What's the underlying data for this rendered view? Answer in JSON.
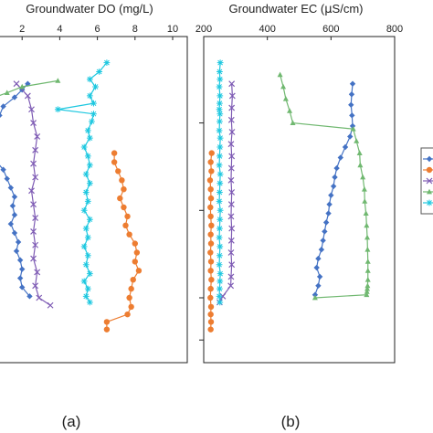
{
  "panels": {
    "a": {
      "title": "Groundwater DO (mg/L)",
      "label": "(a)"
    },
    "b": {
      "title_prefix": "Groundwater EC (",
      "title_mu": "μ",
      "title_suffix": "S/cm)",
      "label": "(b)"
    }
  },
  "chart_data": [
    {
      "type": "line",
      "panel": "a",
      "title": "Groundwater DO (mg/L)",
      "xlabel": "",
      "ylabel": "",
      "xlim": [
        0,
        10
      ],
      "ylim": [
        0,
        1
      ],
      "x_ticks": [
        2,
        4,
        6,
        8,
        10
      ],
      "x_tick_labels": [
        "2",
        "4",
        "6",
        "8",
        "10"
      ],
      "grid": false,
      "series": [
        {
          "color": "#4472c4",
          "marker": "diamond",
          "x": [
            2.3,
            2.0,
            1.6,
            1.0,
            0.8,
            0.5,
            0.2,
            0.1,
            0.3,
            0.6,
            1.0,
            1.2,
            1.4,
            1.6,
            1.5,
            1.6,
            1.4,
            1.6,
            1.8,
            1.7,
            1.9,
            2.0,
            1.9,
            2.0,
            2.4
          ],
          "y": [
            0.09,
            0.11,
            0.135,
            0.165,
            0.195,
            0.225,
            0.255,
            0.285,
            0.315,
            0.345,
            0.375,
            0.405,
            0.435,
            0.465,
            0.495,
            0.525,
            0.555,
            0.585,
            0.615,
            0.645,
            0.675,
            0.705,
            0.735,
            0.765,
            0.795
          ]
        },
        {
          "color": "#ed7d31",
          "marker": "circle",
          "x": [
            6.9,
            6.9,
            7.1,
            7.3,
            7.4,
            7.2,
            7.4,
            7.6,
            7.5,
            7.7,
            8.0,
            8.1,
            8.0,
            8.2,
            7.9,
            7.8,
            7.7,
            7.8,
            7.6,
            6.5,
            6.5
          ],
          "y": [
            0.32,
            0.35,
            0.38,
            0.41,
            0.44,
            0.47,
            0.5,
            0.53,
            0.56,
            0.59,
            0.62,
            0.65,
            0.68,
            0.71,
            0.74,
            0.77,
            0.8,
            0.83,
            0.855,
            0.88,
            0.905
          ]
        },
        {
          "color": "#7e5bb4",
          "marker": "x",
          "x": [
            1.7,
            2.3,
            2.5,
            2.6,
            2.8,
            2.7,
            2.6,
            2.7,
            2.5,
            2.6,
            2.7,
            2.6,
            2.7,
            2.6,
            2.8,
            2.7,
            2.9,
            3.5
          ],
          "y": [
            0.09,
            0.13,
            0.175,
            0.22,
            0.265,
            0.31,
            0.355,
            0.4,
            0.445,
            0.49,
            0.535,
            0.58,
            0.625,
            0.67,
            0.715,
            0.76,
            0.8,
            0.825
          ]
        },
        {
          "color": "#70b870",
          "marker": "triangle",
          "x": [
            3.9,
            2.0,
            1.2,
            0.3
          ],
          "y": [
            0.08,
            0.1,
            0.12,
            0.14
          ]
        },
        {
          "color": "#1ec8e0",
          "marker": "asterisk",
          "x": [
            6.5,
            6.1,
            5.6,
            5.9,
            5.6,
            5.8,
            3.9,
            5.8,
            5.7,
            5.5,
            5.6,
            5.3,
            5.5,
            5.6,
            5.4,
            5.6,
            5.4,
            5.5,
            5.3,
            5.6,
            5.4,
            5.5,
            5.3,
            5.5,
            5.4,
            5.6,
            5.3,
            5.5,
            5.4,
            5.6
          ],
          "y": [
            0.02,
            0.05,
            0.075,
            0.1,
            0.13,
            0.155,
            0.175,
            0.19,
            0.215,
            0.245,
            0.27,
            0.3,
            0.33,
            0.36,
            0.39,
            0.42,
            0.45,
            0.48,
            0.51,
            0.54,
            0.57,
            0.6,
            0.63,
            0.66,
            0.69,
            0.72,
            0.745,
            0.77,
            0.795,
            0.815
          ]
        }
      ]
    },
    {
      "type": "line",
      "panel": "b",
      "title": "Groundwater EC (μS/cm)",
      "xlabel": "",
      "ylabel": "",
      "xlim": [
        200,
        800
      ],
      "ylim": [
        0,
        1
      ],
      "x_ticks": [
        200,
        400,
        600,
        800
      ],
      "x_tick_labels": [
        "200",
        "400",
        "600",
        "800"
      ],
      "grid": false,
      "series": [
        {
          "color": "#4472c4",
          "marker": "diamond",
          "x": [
            668,
            665,
            663,
            666,
            668,
            660,
            645,
            630,
            618,
            612,
            608,
            600,
            595,
            592,
            585,
            580,
            575,
            570,
            560,
            555,
            565,
            560,
            550
          ],
          "y": [
            0.09,
            0.125,
            0.16,
            0.195,
            0.23,
            0.265,
            0.3,
            0.335,
            0.37,
            0.4,
            0.43,
            0.46,
            0.49,
            0.52,
            0.55,
            0.58,
            0.61,
            0.64,
            0.67,
            0.7,
            0.73,
            0.76,
            0.79
          ]
        },
        {
          "color": "#ed7d31",
          "marker": "circle",
          "x": [
            225,
            222,
            224,
            220,
            222,
            223,
            221,
            222,
            224,
            222,
            223,
            221,
            223,
            222,
            224,
            222,
            221,
            223,
            222,
            223,
            222
          ],
          "y": [
            0.32,
            0.35,
            0.38,
            0.41,
            0.44,
            0.47,
            0.5,
            0.53,
            0.56,
            0.59,
            0.62,
            0.65,
            0.68,
            0.71,
            0.74,
            0.77,
            0.8,
            0.83,
            0.855,
            0.88,
            0.905
          ]
        },
        {
          "color": "#7e5bb4",
          "marker": "x",
          "x": [
            288,
            290,
            288,
            287,
            289,
            286,
            288,
            287,
            286,
            288,
            287,
            286,
            288,
            287,
            286,
            288,
            286,
            285,
            260,
            250
          ],
          "y": [
            0.09,
            0.13,
            0.17,
            0.21,
            0.25,
            0.29,
            0.33,
            0.37,
            0.41,
            0.45,
            0.49,
            0.53,
            0.57,
            0.61,
            0.65,
            0.69,
            0.73,
            0.76,
            0.795,
            0.815
          ]
        },
        {
          "color": "#70b870",
          "marker": "triangle",
          "x": [
            440,
            450,
            458,
            470,
            480,
            670,
            680,
            690,
            692,
            700,
            705,
            706,
            710,
            712,
            714,
            715,
            716,
            716,
            716,
            715,
            714,
            713,
            712,
            550
          ],
          "y": [
            0.06,
            0.1,
            0.14,
            0.18,
            0.22,
            0.24,
            0.28,
            0.32,
            0.36,
            0.4,
            0.44,
            0.48,
            0.52,
            0.56,
            0.6,
            0.64,
            0.68,
            0.71,
            0.74,
            0.76,
            0.77,
            0.78,
            0.79,
            0.8
          ]
        },
        {
          "color": "#1ec8e0",
          "marker": "asterisk",
          "x": [
            252,
            250,
            251,
            249,
            251,
            250,
            249,
            251,
            250,
            249,
            252,
            251,
            250,
            249,
            252,
            251,
            250,
            249,
            252,
            251,
            250,
            249,
            251,
            250,
            249,
            252,
            251,
            250,
            249,
            251
          ],
          "y": [
            0.02,
            0.05,
            0.075,
            0.1,
            0.13,
            0.155,
            0.175,
            0.19,
            0.215,
            0.245,
            0.27,
            0.3,
            0.33,
            0.36,
            0.39,
            0.42,
            0.45,
            0.48,
            0.51,
            0.54,
            0.57,
            0.6,
            0.63,
            0.66,
            0.69,
            0.72,
            0.745,
            0.77,
            0.795,
            0.815
          ]
        }
      ]
    }
  ],
  "legend": {
    "placement": "right",
    "entries": [
      {
        "color": "#4472c4",
        "marker": "diamond"
      },
      {
        "color": "#ed7d31",
        "marker": "circle"
      },
      {
        "color": "#7e5bb4",
        "marker": "x"
      },
      {
        "color": "#70b870",
        "marker": "triangle"
      },
      {
        "color": "#1ec8e0",
        "marker": "asterisk"
      }
    ]
  }
}
